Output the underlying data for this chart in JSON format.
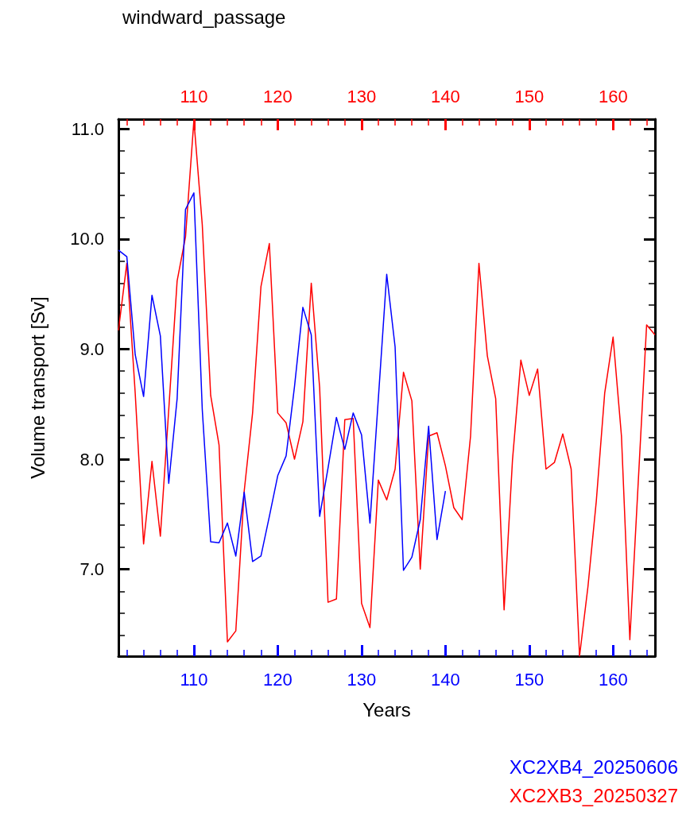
{
  "chart_data": {
    "type": "line",
    "title": "windward_passage",
    "xlabel": "Years",
    "ylabel": "Volume transport [Sv]",
    "xlim": [
      101,
      165
    ],
    "xticks": [
      110,
      120,
      130,
      140,
      150,
      160
    ],
    "x2lim": [
      101,
      165
    ],
    "x2ticks": [
      110,
      120,
      130,
      140,
      150,
      160
    ],
    "ylim": [
      6.21,
      11.09
    ],
    "yticks": [
      {
        "value": 7,
        "label": "7.0"
      },
      {
        "value": 8,
        "label": "8.0"
      },
      {
        "value": 9,
        "label": "9.0"
      },
      {
        "value": 10,
        "label": "10.0"
      },
      {
        "value": 11,
        "label": "11.0"
      }
    ],
    "grid": false,
    "legend": "bottom right",
    "marker": "none",
    "line_style": "solid",
    "series": [
      {
        "name": "XC2XB4_20250606",
        "color": "#0000ff",
        "x": [
          101,
          102,
          103,
          104,
          105,
          106,
          107,
          108,
          109,
          110,
          111,
          112,
          113,
          114,
          115,
          116,
          117,
          118,
          119,
          120,
          121,
          122,
          123,
          124,
          125,
          126,
          127,
          128,
          129,
          130,
          131,
          132,
          133,
          134,
          135,
          136,
          137,
          138,
          139,
          140
        ],
        "values": [
          9.9,
          9.84,
          8.95,
          8.57,
          9.49,
          9.12,
          7.78,
          8.55,
          10.27,
          10.42,
          8.45,
          7.25,
          7.24,
          7.42,
          7.12,
          7.7,
          7.07,
          7.12,
          7.48,
          7.85,
          8.03,
          8.66,
          9.38,
          9.13,
          7.48,
          7.92,
          8.38,
          8.09,
          8.42,
          8.22,
          7.42,
          8.55,
          9.68,
          9.02,
          6.99,
          7.11,
          7.45,
          8.3,
          7.27,
          7.71
        ]
      },
      {
        "name": "XC2XB3_20250327",
        "color": "#ff0000",
        "axis": "x2",
        "x": [
          101,
          102,
          103,
          104,
          105,
          106,
          107,
          108,
          109,
          110,
          111,
          112,
          113,
          114,
          115,
          116,
          117,
          118,
          119,
          120,
          121,
          122,
          123,
          124,
          125,
          126,
          127,
          128,
          129,
          130,
          131,
          132,
          133,
          134,
          135,
          136,
          137,
          138,
          139,
          140,
          141,
          142,
          143,
          144,
          145,
          146,
          147,
          148,
          149,
          150,
          151,
          152,
          153,
          154,
          155,
          156,
          157,
          158,
          159,
          160,
          161,
          162,
          163,
          164,
          165
        ],
        "values": [
          9.17,
          9.78,
          8.6,
          7.23,
          7.98,
          7.3,
          8.45,
          9.62,
          10.02,
          11.08,
          10.13,
          8.58,
          8.13,
          6.34,
          6.44,
          7.71,
          8.42,
          9.57,
          9.96,
          8.42,
          8.33,
          8.0,
          8.34,
          9.6,
          8.65,
          6.7,
          6.73,
          8.36,
          8.37,
          6.69,
          6.47,
          7.81,
          7.63,
          7.91,
          8.79,
          8.53,
          7.0,
          8.21,
          8.24,
          7.94,
          7.56,
          7.45,
          8.21,
          9.78,
          8.94,
          8.55,
          6.63,
          7.99,
          8.9,
          8.58,
          8.82,
          7.91,
          7.97,
          8.23,
          7.91,
          6.21,
          6.84,
          7.62,
          8.6,
          9.11,
          8.21,
          6.36,
          7.79,
          9.22,
          9.13
        ]
      }
    ]
  }
}
